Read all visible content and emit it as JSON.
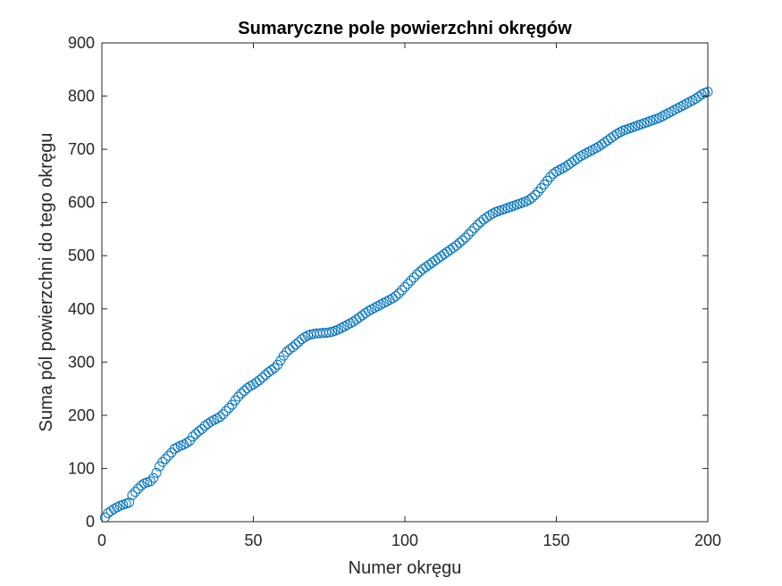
{
  "chart_data": {
    "type": "scatter",
    "title": "Sumaryczne pole powierzchni okręgów",
    "xlabel": "Numer okręgu",
    "ylabel": "Suma pól powierzchni do tego okręgu",
    "xlim": [
      0,
      200
    ],
    "ylim": [
      0,
      900
    ],
    "xticks": [
      0,
      50,
      100,
      150,
      200
    ],
    "yticks": [
      0,
      100,
      200,
      300,
      400,
      500,
      600,
      700,
      800,
      900
    ],
    "grid": false,
    "legend": "none",
    "marker": "circle",
    "marker_color": "#0072BD",
    "series": [
      {
        "x_start": 1,
        "x_step": 1,
        "values": [
          8,
          16,
          20,
          24,
          27,
          30,
          32,
          34,
          36,
          50,
          56,
          62,
          68,
          72,
          74,
          76,
          82,
          92,
          104,
          112,
          118,
          124,
          130,
          137,
          140,
          143,
          145,
          148,
          152,
          160,
          165,
          170,
          174,
          180,
          184,
          188,
          191,
          194,
          197,
          202,
          208,
          214,
          220,
          228,
          235,
          241,
          246,
          251,
          255,
          258,
          262,
          266,
          271,
          276,
          281,
          285,
          289,
          295,
          303,
          312,
          319,
          324,
          328,
          333,
          338,
          343,
          347,
          350,
          352,
          353,
          354,
          354,
          355,
          355,
          356,
          357,
          359,
          361,
          364,
          367,
          370,
          373,
          376,
          380,
          384,
          388,
          392,
          396,
          399,
          402,
          405,
          408,
          411,
          414,
          417,
          420,
          424,
          429,
          435,
          441,
          447,
          453,
          459,
          465,
          470,
          475,
          479,
          483,
          487,
          491,
          495,
          499,
          503,
          507,
          511,
          515,
          519,
          524,
          529,
          534,
          540,
          546,
          552,
          558,
          563,
          568,
          572,
          576,
          579,
          582,
          584,
          586,
          588,
          590,
          592,
          594,
          596,
          598,
          600,
          602,
          605,
          609,
          614,
          620,
          627,
          634,
          641,
          648,
          654,
          658,
          661,
          664,
          667,
          671,
          675,
          679,
          683,
          687,
          690,
          693,
          696,
          699,
          702,
          705,
          709,
          713,
          717,
          721,
          725,
          729,
          732,
          735,
          737,
          739,
          741,
          743,
          745,
          747,
          749,
          751,
          753,
          755,
          757,
          759,
          762,
          765,
          768,
          771,
          774,
          777,
          780,
          783,
          786,
          789,
          792,
          795,
          799,
          803,
          806,
          808
        ]
      }
    ]
  }
}
